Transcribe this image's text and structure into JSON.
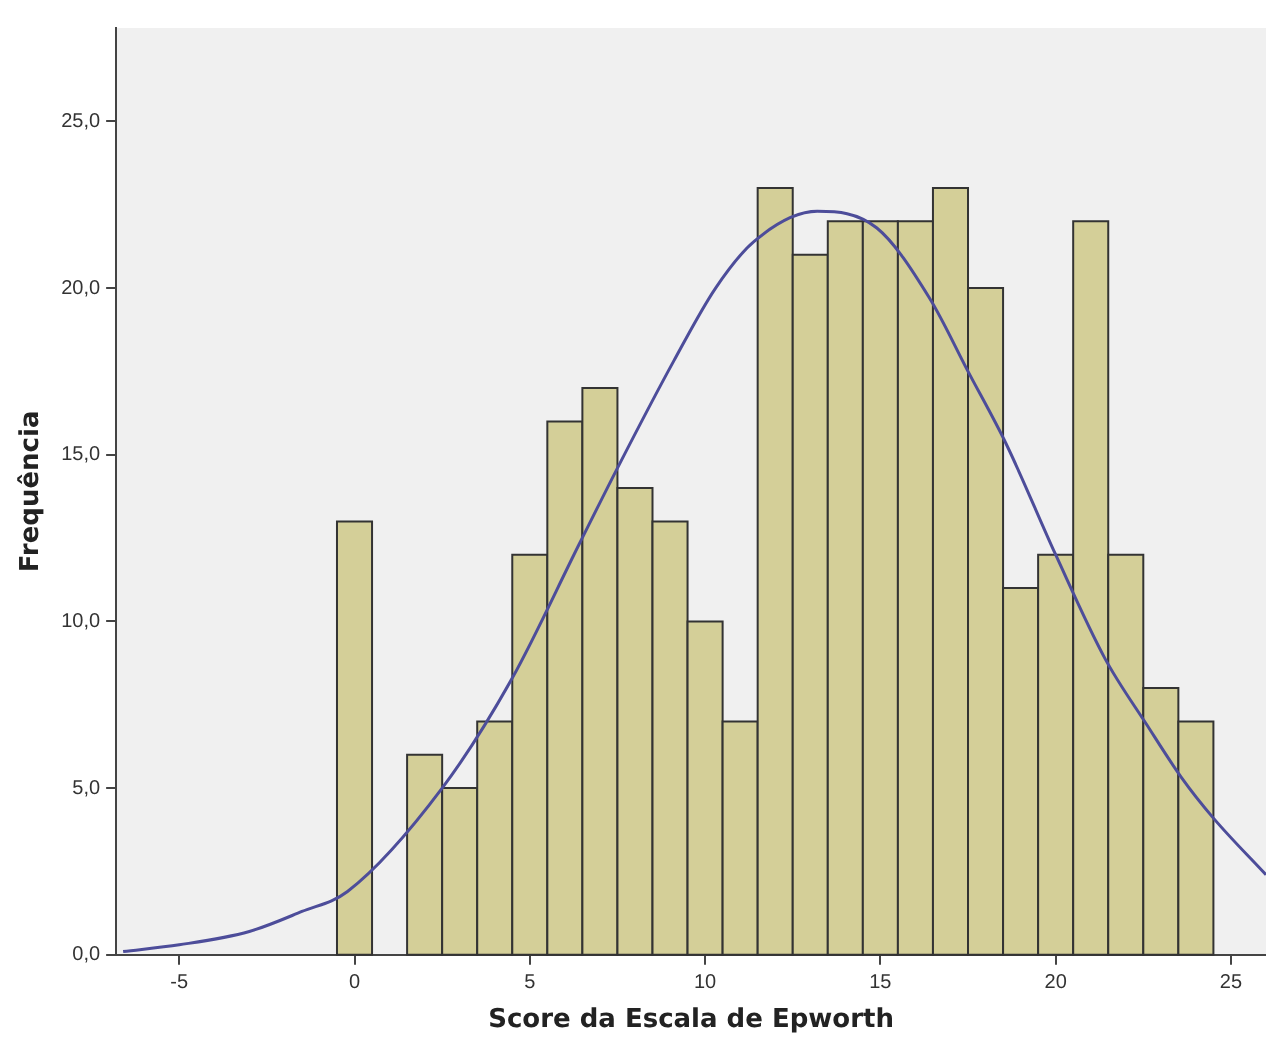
{
  "chart_data": {
    "type": "histogram",
    "xlabel": "Score da Escala de Epworth",
    "ylabel": "Frequência",
    "bins": [
      -0.5,
      0.5,
      1.5,
      2.5,
      3.5,
      4.5,
      5.5,
      6.5,
      7.5,
      8.5,
      9.5,
      10.5,
      11.5,
      12.5,
      13.5,
      14.5,
      15.5,
      16.5,
      17.5,
      18.5,
      19.5,
      20.5,
      21.5,
      22.5,
      23.5,
      24.5
    ],
    "values": [
      13,
      0,
      6,
      5,
      7,
      12,
      16,
      17,
      14,
      13,
      10,
      7,
      23,
      21,
      22,
      22,
      22,
      23,
      20,
      11,
      12,
      22,
      12,
      8,
      7
    ],
    "color": "#d4cf98",
    "series": [
      {
        "type": "line",
        "color": "#4d4d9a",
        "x": [
          -6.6,
          -5,
          -3,
          -1.5,
          -0.2,
          2.5,
          4.5,
          6.4,
          7.5,
          9.1,
          10.3,
          11.4,
          13.2,
          14.9,
          16.4,
          17.5,
          18.6,
          20,
          21.4,
          22.6,
          23.6,
          24.5,
          26
        ],
        "values": [
          0.1,
          0.3,
          0.7,
          1.3,
          1.9,
          5,
          8.3,
          12.3,
          14.6,
          17.8,
          20,
          21.4,
          22.3,
          21.8,
          19.7,
          17.5,
          15.3,
          12,
          8.9,
          6.9,
          5.3,
          4.1,
          2.4
        ]
      }
    ],
    "xlim": [
      -6.8,
      26
    ],
    "xticks": [
      -5,
      0,
      5,
      10,
      15,
      20,
      25
    ],
    "ylim": [
      0,
      27.8
    ],
    "yticks": [
      {
        "value": 0,
        "label": "0,0"
      },
      {
        "value": 5,
        "label": "5,0"
      },
      {
        "value": 10,
        "label": "10,0"
      },
      {
        "value": 15,
        "label": "15,0"
      },
      {
        "value": 20,
        "label": "20,0"
      },
      {
        "value": 25,
        "label": "25,0"
      }
    ]
  }
}
